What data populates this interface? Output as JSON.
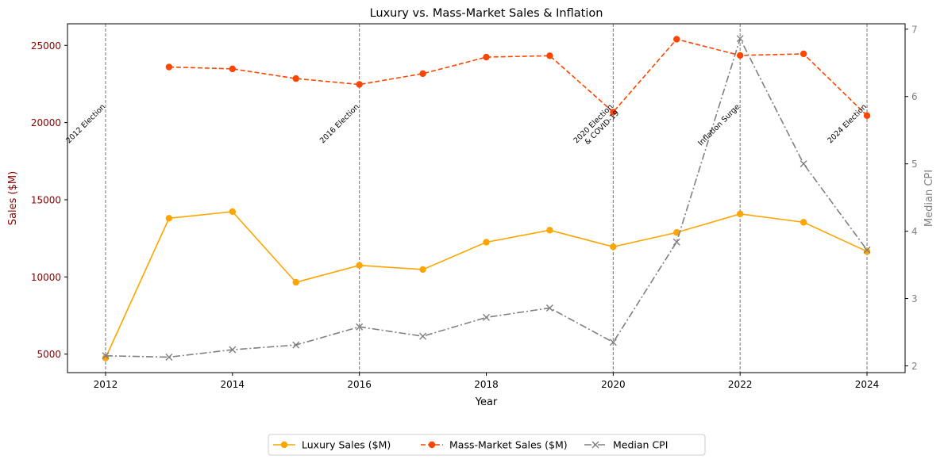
{
  "chart_data": {
    "type": "line",
    "title": "Luxury vs. Mass-Market Sales & Inflation",
    "xlabel": "Year",
    "ylabel": "Sales ($M)",
    "y2label": "Median CPI",
    "x": [
      2012,
      2013,
      2014,
      2015,
      2016,
      2017,
      2018,
      2019,
      2020,
      2021,
      2022,
      2023,
      2024
    ],
    "xlim": [
      2011.4,
      2024.6
    ],
    "ylim": [
      3800,
      26400
    ],
    "y2lim": [
      1.9,
      7.08
    ],
    "xticks": [
      2012,
      2014,
      2016,
      2018,
      2020,
      2022,
      2024
    ],
    "yticks": [
      5000,
      10000,
      15000,
      20000,
      25000
    ],
    "y2ticks": [
      2,
      3,
      4,
      5,
      6,
      7
    ],
    "grid": false,
    "legend_position": "bottom-center",
    "series": [
      {
        "name": "Luxury Sales ($M)",
        "axis": "left",
        "color": "#ffa500",
        "style": "solid",
        "marker": "circle",
        "values": [
          4750,
          13800,
          14230,
          9650,
          10750,
          10480,
          12250,
          13030,
          11950,
          12880,
          14080,
          13540,
          11650
        ]
      },
      {
        "name": "Mass-Market Sales ($M)",
        "axis": "left",
        "color": "#ff4500",
        "style": "dashed",
        "marker": "circle",
        "values": [
          null,
          23600,
          23480,
          22850,
          22470,
          23170,
          24240,
          24330,
          20680,
          25400,
          24350,
          24450,
          20450
        ]
      },
      {
        "name": "Median CPI",
        "axis": "right",
        "color": "#808080",
        "style": "dashdot",
        "marker": "x",
        "values": [
          2.15,
          2.13,
          2.24,
          2.31,
          2.58,
          2.44,
          2.72,
          2.86,
          2.35,
          3.84,
          6.86,
          5.0,
          3.72
        ]
      }
    ],
    "annotations": [
      {
        "x": 2012,
        "lines": [
          "2012 Election"
        ]
      },
      {
        "x": 2016,
        "lines": [
          "2016 Election"
        ]
      },
      {
        "x": 2020,
        "lines": [
          "2020 Election",
          "& COVID-19"
        ]
      },
      {
        "x": 2022,
        "lines": [
          "Inflation Surge"
        ]
      },
      {
        "x": 2024,
        "lines": [
          "2024 Election"
        ]
      }
    ],
    "left_axis_color": "#8b0000",
    "right_axis_color": "#808080"
  }
}
